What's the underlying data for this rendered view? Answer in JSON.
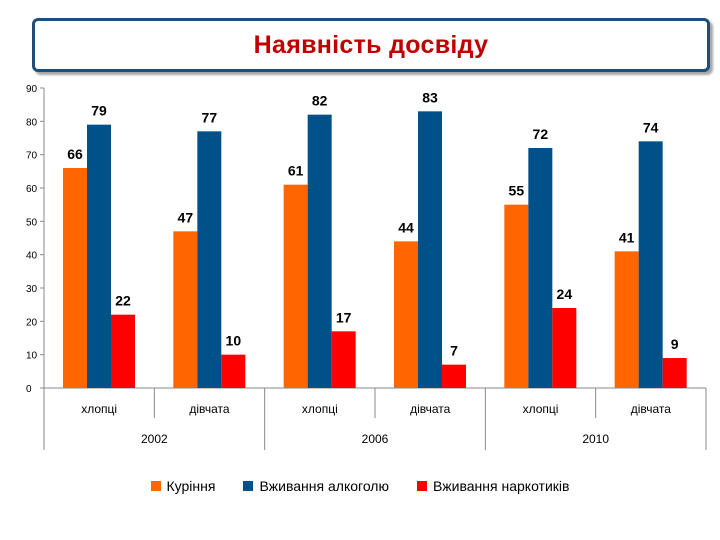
{
  "title": "Наявність досвіду",
  "colors": {
    "smoking": "#ff6600",
    "alcohol": "#00508a",
    "drugs": "#ff0000",
    "title": "#c00000",
    "frame": "#1f4e79"
  },
  "chart_data": {
    "type": "bar",
    "title": "Наявність досвіду",
    "ylim": [
      0,
      90
    ],
    "yticks": [
      "0",
      "10",
      "20",
      "30",
      "40",
      "50",
      "60",
      "70",
      "80",
      "90"
    ],
    "groups": [
      "2002",
      "2006",
      "2010"
    ],
    "categories": [
      "хлопці",
      "дівчата",
      "хлопці",
      "дівчата",
      "хлопці",
      "дівчата"
    ],
    "series": [
      {
        "name": "Куріння",
        "color": "#ff6600",
        "values": [
          66,
          47,
          61,
          44,
          55,
          41
        ]
      },
      {
        "name": "Вживання алкоголю",
        "color": "#00508a",
        "values": [
          79,
          77,
          82,
          83,
          72,
          74
        ]
      },
      {
        "name": "Вживання наркотиків",
        "color": "#ff0000",
        "values": [
          22,
          10,
          17,
          7,
          24,
          9
        ]
      }
    ],
    "legend_position": "bottom"
  },
  "legend": [
    {
      "label": "Куріння",
      "color": "#ff6600"
    },
    {
      "label": "Вживання алкоголю",
      "color": "#00508a"
    },
    {
      "label": "Вживання наркотиків",
      "color": "#ff0000"
    }
  ]
}
